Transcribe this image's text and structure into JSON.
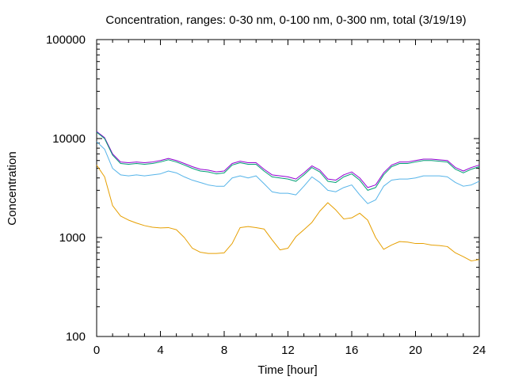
{
  "chart_data": {
    "type": "line",
    "title": "Concentration, ranges: 0-30 nm, 0-100 nm, 0-300 nm, total (3/19/19)",
    "xlabel": "Time [hour]",
    "ylabel": "Concentration",
    "xlim": [
      0,
      24
    ],
    "ylim": [
      100,
      100000
    ],
    "y_scale": "log",
    "grid": false,
    "x_ticks": [
      0,
      4,
      8,
      12,
      16,
      20,
      24
    ],
    "x_tick_labels": [
      "0",
      "4",
      "8",
      "12",
      "16",
      "20",
      "24"
    ],
    "y_ticks": [
      100,
      1000,
      10000,
      100000
    ],
    "y_tick_labels": [
      "100",
      "1000",
      "10000",
      "100000"
    ],
    "x": [
      0,
      0.5,
      1,
      1.5,
      2,
      2.5,
      3,
      3.5,
      4,
      4.5,
      5,
      5.5,
      6,
      6.5,
      7,
      7.5,
      8,
      8.5,
      9,
      9.5,
      10,
      10.5,
      11,
      11.5,
      12,
      12.5,
      13,
      13.5,
      14,
      14.5,
      15,
      15.5,
      16,
      16.5,
      17,
      17.5,
      18,
      18.5,
      19,
      19.5,
      20,
      20.5,
      21,
      21.5,
      22,
      22.5,
      23,
      23.5,
      24
    ],
    "series": [
      {
        "color": "#9400d3",
        "values": [
          11800,
          10200,
          7000,
          5800,
          5700,
          5800,
          5700,
          5800,
          6000,
          6300,
          6000,
          5600,
          5200,
          4900,
          4800,
          4600,
          4700,
          5600,
          5900,
          5700,
          5700,
          4900,
          4300,
          4200,
          4100,
          3900,
          4500,
          5300,
          4800,
          3900,
          3800,
          4300,
          4600,
          4000,
          3200,
          3400,
          4500,
          5400,
          5800,
          5800,
          6000,
          6200,
          6200,
          6100,
          6000,
          5100,
          4700,
          5100,
          5400
        ]
      },
      {
        "color": "#009e73",
        "values": [
          11600,
          10000,
          6800,
          5600,
          5500,
          5600,
          5500,
          5600,
          5800,
          6100,
          5800,
          5400,
          5000,
          4700,
          4600,
          4400,
          4500,
          5400,
          5700,
          5500,
          5500,
          4700,
          4100,
          4000,
          3900,
          3700,
          4300,
          5100,
          4600,
          3700,
          3600,
          4100,
          4400,
          3800,
          3000,
          3200,
          4300,
          5200,
          5600,
          5600,
          5800,
          6000,
          6000,
          5900,
          5800,
          4900,
          4500,
          4900,
          5200
        ]
      },
      {
        "color": "#56b4e9",
        "values": [
          9300,
          7800,
          5000,
          4300,
          4200,
          4300,
          4200,
          4300,
          4400,
          4700,
          4500,
          4100,
          3800,
          3600,
          3400,
          3300,
          3300,
          4000,
          4200,
          4000,
          4200,
          3500,
          2900,
          2800,
          2800,
          2700,
          3300,
          4100,
          3600,
          3000,
          2900,
          3200,
          3400,
          2700,
          2200,
          2400,
          3300,
          3800,
          3900,
          3900,
          4000,
          4200,
          4200,
          4200,
          4100,
          3600,
          3300,
          3400,
          3700
        ]
      },
      {
        "color": "#e69f00",
        "values": [
          5400,
          4100,
          2100,
          1650,
          1500,
          1400,
          1320,
          1270,
          1250,
          1260,
          1200,
          1000,
          780,
          710,
          690,
          690,
          700,
          870,
          1260,
          1290,
          1260,
          1220,
          950,
          750,
          780,
          1020,
          1200,
          1420,
          1850,
          2250,
          1900,
          1540,
          1580,
          1760,
          1500,
          1000,
          760,
          840,
          910,
          900,
          870,
          870,
          840,
          830,
          810,
          700,
          640,
          580,
          600
        ]
      }
    ]
  }
}
